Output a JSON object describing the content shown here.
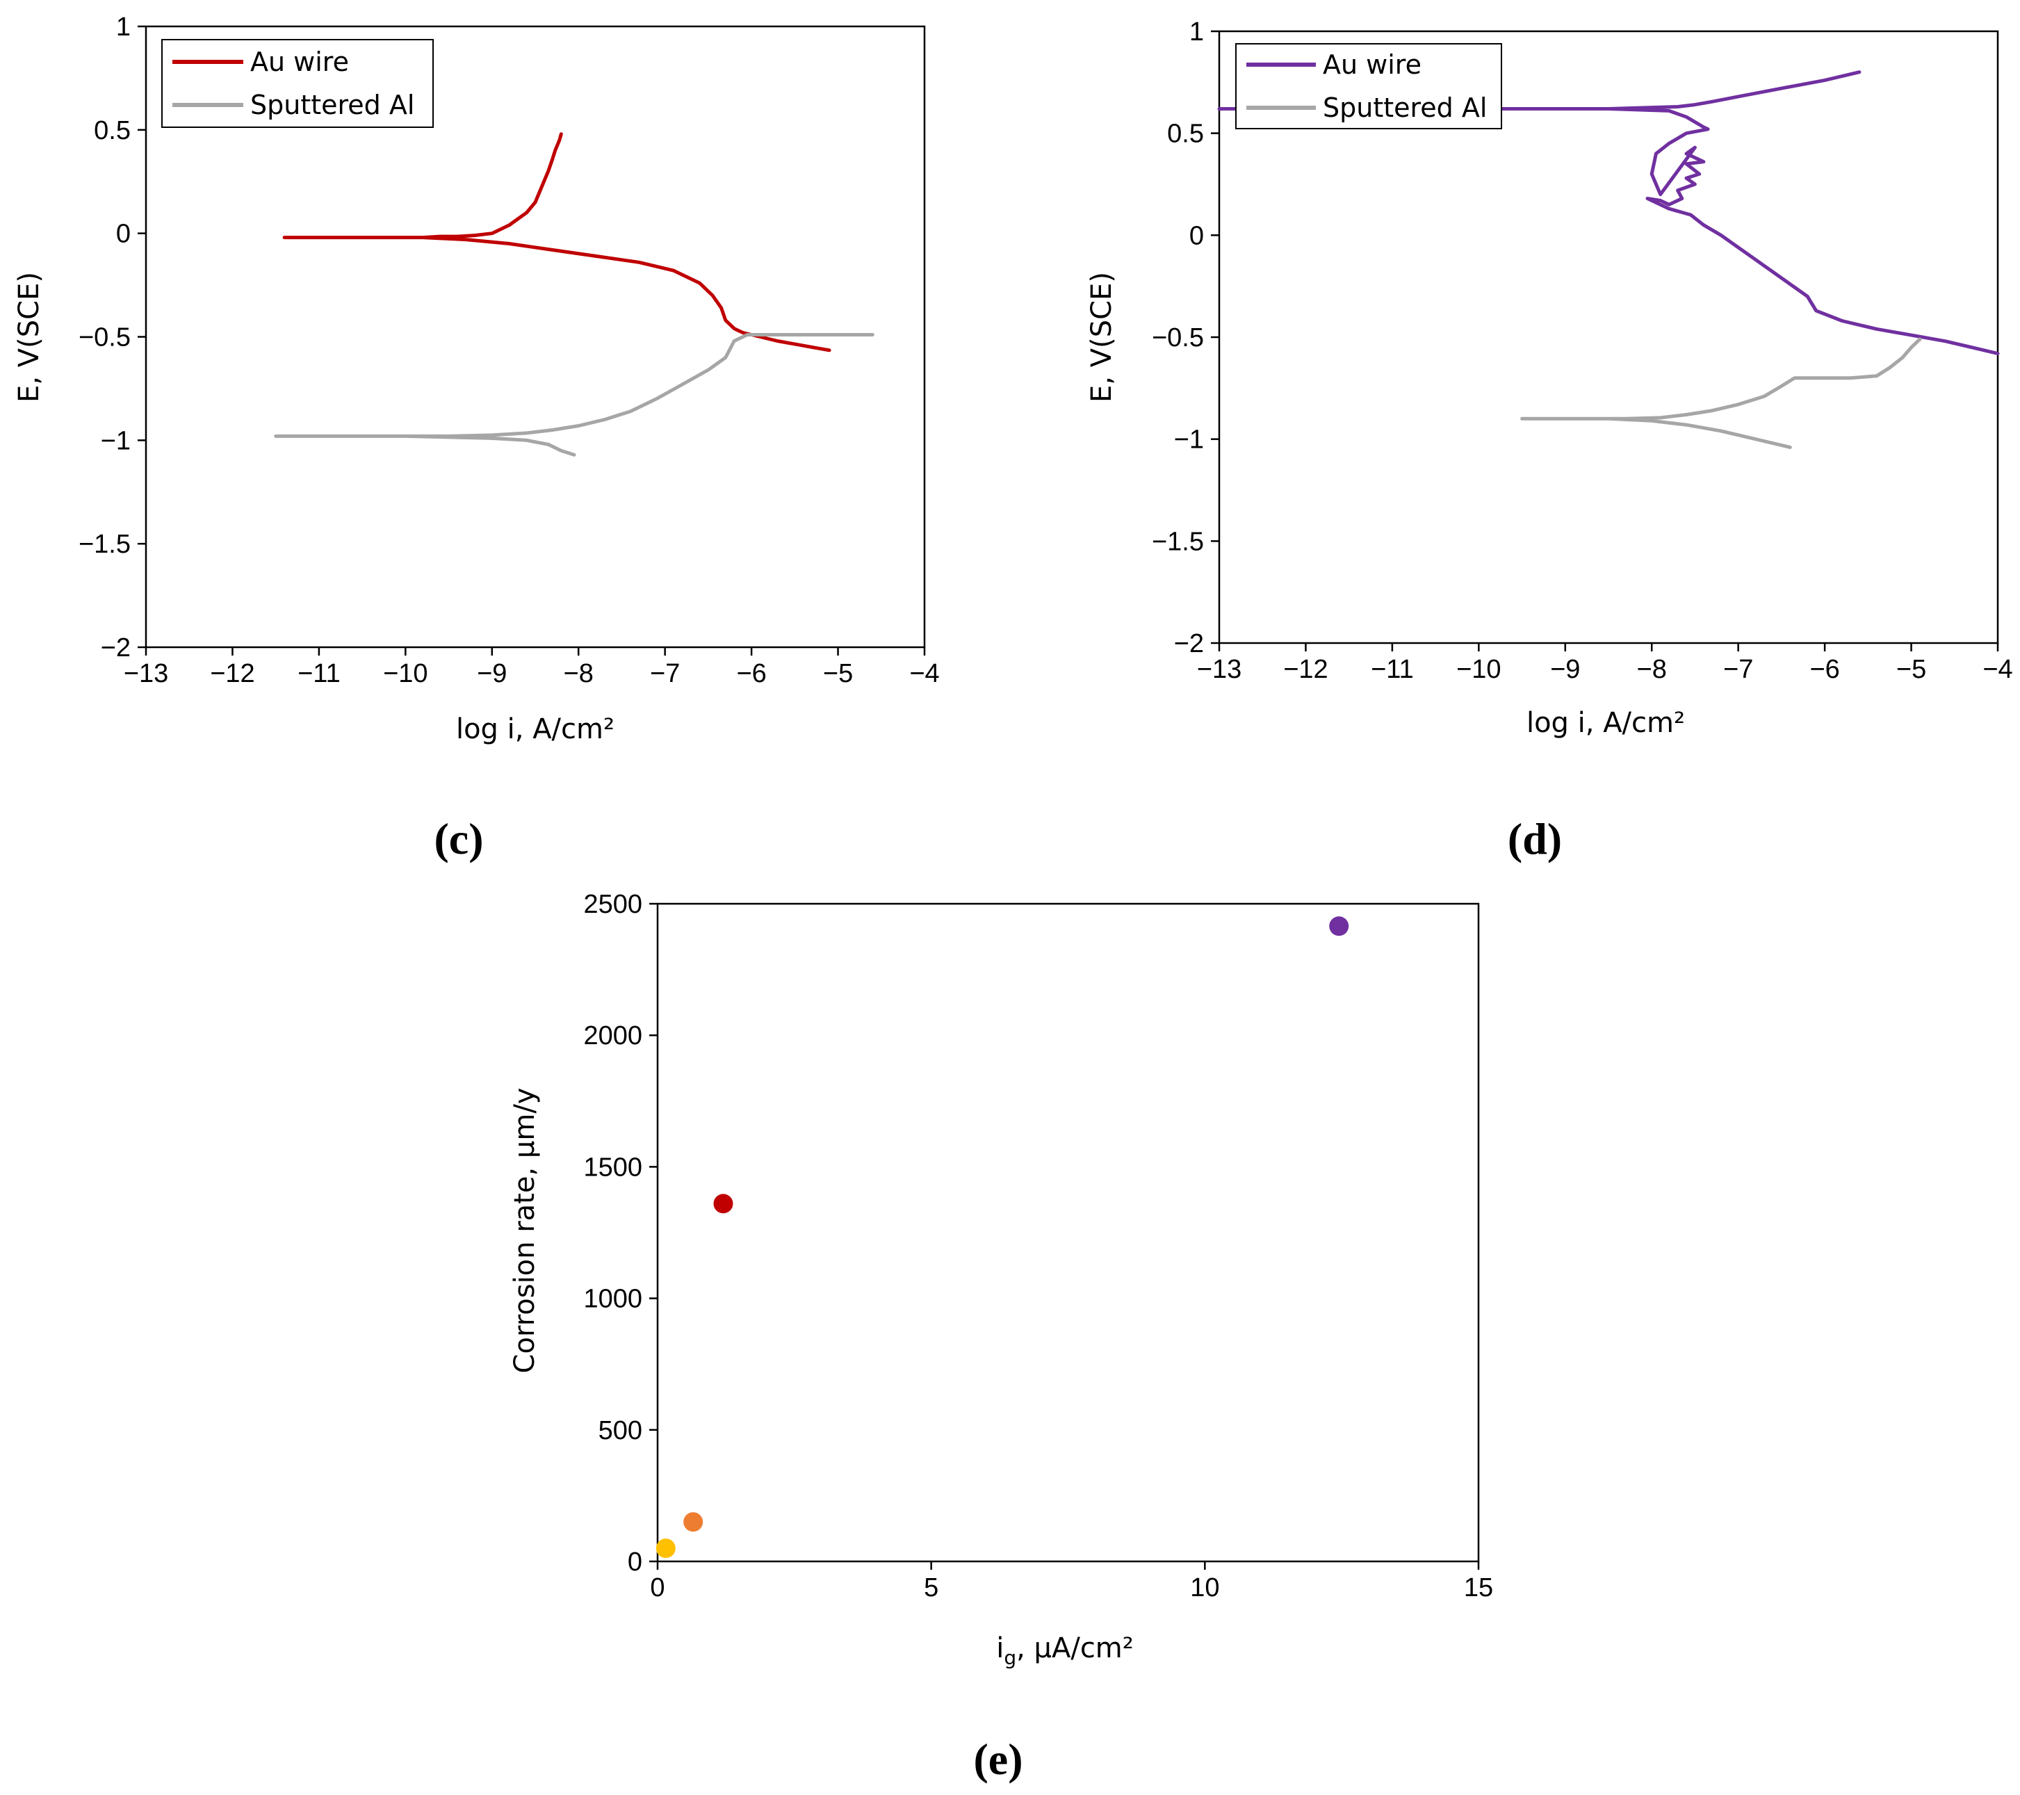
{
  "chart_data": [
    {
      "id": "c",
      "type": "line",
      "panel_label": "(c)",
      "xlabel": "log i, A/cm²",
      "ylabel": "E, V(SCE)",
      "xlim": [
        -13,
        -4
      ],
      "ylim": [
        -2,
        1
      ],
      "xticks": [
        "−13",
        "−12",
        "−11",
        "−10",
        "−9",
        "−8",
        "−7",
        "−6",
        "−5",
        "−4"
      ],
      "yticks": [
        "1",
        "0.5",
        "0",
        "−0.5",
        "−1",
        "−1.5",
        "−2"
      ],
      "legend_position": "top-left",
      "series": [
        {
          "name": "Au wire",
          "color": "#c00000",
          "x": [
            -8.2,
            -8.22,
            -8.27,
            -8.3,
            -8.35,
            -8.4,
            -8.45,
            -8.5,
            -8.6,
            -8.7,
            -8.8,
            -8.9,
            -9.0,
            -9.2,
            -9.4,
            -9.6,
            -9.8,
            -10.0,
            -10.5,
            -11.0,
            -11.4,
            -9.8,
            -9.3,
            -8.8,
            -8.3,
            -7.8,
            -7.3,
            -6.9,
            -6.6,
            -6.45,
            -6.35,
            -6.3,
            -6.2,
            -6.1,
            -5.9,
            -5.7,
            -5.5,
            -5.3,
            -5.1
          ],
          "y": [
            0.48,
            0.45,
            0.4,
            0.36,
            0.3,
            0.25,
            0.2,
            0.15,
            0.1,
            0.07,
            0.04,
            0.02,
            0.0,
            -0.01,
            -0.015,
            -0.015,
            -0.02,
            -0.02,
            -0.02,
            -0.02,
            -0.02,
            -0.02,
            -0.03,
            -0.05,
            -0.08,
            -0.11,
            -0.14,
            -0.18,
            -0.24,
            -0.3,
            -0.36,
            -0.42,
            -0.46,
            -0.48,
            -0.5,
            -0.52,
            -0.535,
            -0.55,
            -0.565
          ]
        },
        {
          "name": "Sputtered Al",
          "color": "#a6a6a6",
          "x": [
            -4.6,
            -4.8,
            -5.0,
            -5.3,
            -5.6,
            -5.9,
            -6.05,
            -6.2,
            -6.3,
            -6.5,
            -6.8,
            -7.1,
            -7.4,
            -7.7,
            -8.0,
            -8.3,
            -8.6,
            -9.0,
            -9.5,
            -10.0,
            -10.5,
            -11.0,
            -11.5,
            -10.0,
            -9.5,
            -9.0,
            -8.6,
            -8.35,
            -8.2,
            -8.05
          ],
          "y": [
            -0.49,
            -0.49,
            -0.49,
            -0.49,
            -0.49,
            -0.49,
            -0.49,
            -0.52,
            -0.6,
            -0.66,
            -0.73,
            -0.8,
            -0.86,
            -0.9,
            -0.93,
            -0.95,
            -0.965,
            -0.975,
            -0.98,
            -0.98,
            -0.98,
            -0.98,
            -0.98,
            -0.98,
            -0.985,
            -0.99,
            -1.0,
            -1.02,
            -1.05,
            -1.07
          ]
        }
      ]
    },
    {
      "id": "d",
      "type": "line",
      "panel_label": "(d)",
      "xlabel": "log i, A/cm²",
      "ylabel": "E, V(SCE)",
      "xlim": [
        -13,
        -4
      ],
      "ylim": [
        -2,
        1
      ],
      "xticks": [
        "−13",
        "−12",
        "−11",
        "−10",
        "−9",
        "−8",
        "−7",
        "−6",
        "−5",
        "−4"
      ],
      "yticks": [
        "1",
        "0.5",
        "0",
        "−0.5",
        "−1",
        "−1.5",
        "−2"
      ],
      "legend_position": "top-left",
      "series": [
        {
          "name": "Au wire",
          "color": "#7030a0",
          "x": [
            -5.6,
            -6.0,
            -6.5,
            -7.0,
            -7.3,
            -7.5,
            -7.7,
            -8.5,
            -9.5,
            -10.5,
            -11.5,
            -12.0,
            -13.0,
            -11.5,
            -10.0,
            -8.5,
            -7.8,
            -7.6,
            -7.4,
            -7.35,
            -7.6,
            -7.8,
            -7.95,
            -8.0,
            -7.9,
            -7.5,
            -7.6,
            -7.4,
            -7.6,
            -7.45,
            -7.6,
            -7.5,
            -7.7,
            -7.65,
            -7.8,
            -7.9,
            -8.05,
            -7.8,
            -7.55,
            -7.4,
            -7.2,
            -7.0,
            -6.8,
            -6.6,
            -6.4,
            -6.2,
            -6.1,
            -5.8,
            -5.4,
            -5.0,
            -4.6,
            -4.3,
            -4.0
          ],
          "y": [
            0.8,
            0.76,
            0.72,
            0.68,
            0.655,
            0.64,
            0.63,
            0.62,
            0.62,
            0.62,
            0.62,
            0.62,
            0.62,
            0.62,
            0.62,
            0.62,
            0.61,
            0.58,
            0.53,
            0.52,
            0.5,
            0.45,
            0.4,
            0.3,
            0.2,
            0.43,
            0.4,
            0.36,
            0.35,
            0.3,
            0.28,
            0.25,
            0.22,
            0.18,
            0.15,
            0.17,
            0.18,
            0.13,
            0.1,
            0.05,
            0.0,
            -0.06,
            -0.12,
            -0.18,
            -0.24,
            -0.3,
            -0.37,
            -0.42,
            -0.46,
            -0.49,
            -0.52,
            -0.55,
            -0.58
          ]
        },
        {
          "name": "Sputtered Al",
          "color": "#a6a6a6",
          "x": [
            -4.9,
            -5.0,
            -5.1,
            -5.25,
            -5.4,
            -5.7,
            -6.0,
            -6.25,
            -6.35,
            -6.5,
            -6.7,
            -7.0,
            -7.3,
            -7.6,
            -7.9,
            -8.3,
            -8.7,
            -9.1,
            -9.5,
            -9.0,
            -8.5,
            -8.0,
            -7.6,
            -7.2,
            -6.9,
            -6.6,
            -6.4
          ],
          "y": [
            -0.51,
            -0.55,
            -0.6,
            -0.65,
            -0.69,
            -0.7,
            -0.7,
            -0.7,
            -0.7,
            -0.74,
            -0.79,
            -0.83,
            -0.86,
            -0.88,
            -0.895,
            -0.9,
            -0.9,
            -0.9,
            -0.9,
            -0.9,
            -0.9,
            -0.91,
            -0.93,
            -0.96,
            -0.99,
            -1.02,
            -1.04
          ]
        }
      ]
    },
    {
      "id": "e",
      "type": "scatter",
      "panel_label": "(e)",
      "xlabel": "i",
      "xlabel_sub": "g",
      "xlabel_rest": ", μA/cm²",
      "ylabel": "Corrosion rate, μm/y",
      "xlim": [
        0,
        15
      ],
      "ylim": [
        0,
        2500
      ],
      "xticks": [
        "0",
        "5",
        "10",
        "15"
      ],
      "yticks": [
        "2500",
        "2000",
        "1500",
        "1000",
        "500",
        "0"
      ],
      "points": [
        {
          "x": 0.15,
          "y": 50,
          "color": "#ffc000"
        },
        {
          "x": 0.65,
          "y": 150,
          "color": "#ed7d31"
        },
        {
          "x": 1.2,
          "y": 1360,
          "color": "#c00000"
        },
        {
          "x": 12.45,
          "y": 2415,
          "color": "#7030a0"
        }
      ]
    }
  ]
}
